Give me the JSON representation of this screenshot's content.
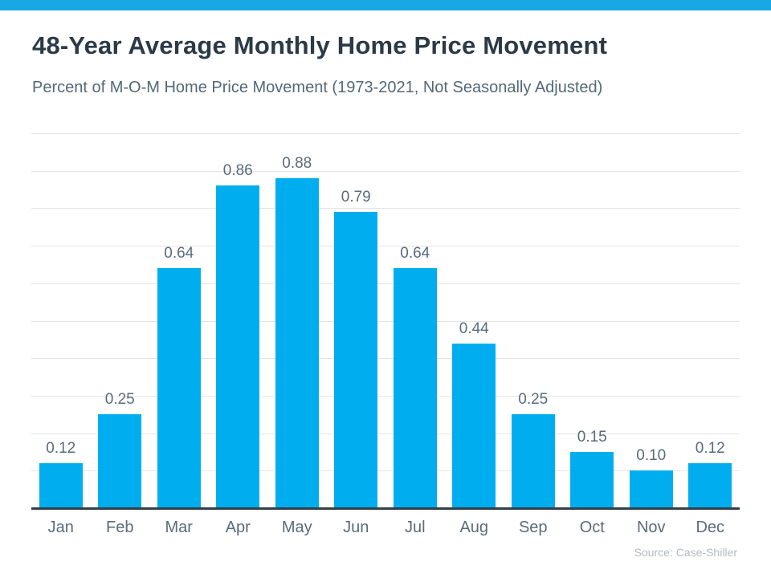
{
  "header": {
    "title": "48-Year Average Monthly Home Price Movement",
    "subtitle": "Percent of M-O-M Home Price Movement (1973-2021, Not Seasonally Adjusted)"
  },
  "footer": {
    "source": "Source: Case-Shiller"
  },
  "colors": {
    "top_accent_bar": "#19a8e3",
    "bar_fill": "#00aeef",
    "gridline": "#e4e4e4",
    "axis_line": "#333f48",
    "title_text": "#2b3a47",
    "subtitle_text": "#546878",
    "label_text": "#5a6b7c",
    "source_text": "#b3bac1"
  },
  "chart_data": {
    "type": "bar",
    "title": "48-Year Average Monthly Home Price Movement",
    "subtitle": "Percent of M-O-M Home Price Movement (1973-2021, Not Seasonally Adjusted)",
    "categories": [
      "Jan",
      "Feb",
      "Mar",
      "Apr",
      "May",
      "Jun",
      "Jul",
      "Aug",
      "Sep",
      "Oct",
      "Nov",
      "Dec"
    ],
    "values": [
      0.12,
      0.25,
      0.64,
      0.86,
      0.88,
      0.79,
      0.64,
      0.44,
      0.25,
      0.15,
      0.1,
      0.12
    ],
    "value_labels": [
      "0.12",
      "0.25",
      "0.64",
      "0.86",
      "0.88",
      "0.79",
      "0.64",
      "0.44",
      "0.25",
      "0.15",
      "0.10",
      "0.12"
    ],
    "xlabel": "",
    "ylabel": "",
    "ylim": [
      0,
      1.0
    ],
    "gridline_step": 0.1,
    "grid": true,
    "legend": false,
    "yaxis_tick_labels_shown": false,
    "source": "Source: Case-Shiller",
    "bar_color": "#00aeef"
  }
}
